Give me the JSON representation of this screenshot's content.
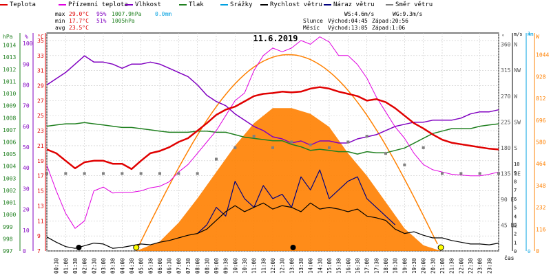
{
  "legend": [
    {
      "label": "Teplota",
      "color": "#e00000"
    },
    {
      "label": "Přízemní teplota",
      "color": "#e000e0"
    },
    {
      "label": "Vlhkost",
      "color": "#8000c0"
    },
    {
      "label": "Tlak",
      "color": "#208020"
    },
    {
      "label": "Srážky",
      "color": "#00a0e0"
    },
    {
      "label": "Rychlost větru",
      "color": "#000000"
    },
    {
      "label": "Náraz větru",
      "color": "#000080"
    },
    {
      "label": "Směr větru",
      "color": "#808080"
    }
  ],
  "stats": {
    "max_label": "max",
    "max_temp": "29.0°C",
    "max_hum": "95%",
    "max_press": "1007.9hPa",
    "rain": "0.0mm",
    "min_label": "min",
    "min_temp": "17.7°C",
    "min_hum": "51%",
    "min_press": "1005hPa",
    "avg_label": "avg",
    "avg_temp": "23.5°C",
    "ws": "WS:4.6m/s",
    "wg": "WG:9.3m/s",
    "sun_label": "Slunce",
    "sun_rise": "Východ:04:45",
    "sun_set": "Západ:20:56",
    "moon_label": "Měsíc",
    "moon_rise": "Východ:13:05",
    "moon_set": "Západ:1:06"
  },
  "colors": {
    "temp": "#e00000",
    "ground": "#e000e0",
    "hum": "#8000c0",
    "press": "#208020",
    "rain": "#00a0e0",
    "wind": "#000000",
    "gust": "#000080",
    "dir": "#808080",
    "sun": "#ff8000",
    "sunfill": "#ff8000",
    "yaxis_rain": "#00a0e0"
  },
  "chart_data": {
    "type": "line",
    "title": "11.6.2019",
    "xlabel": "čas",
    "x_hours": [
      0,
      1,
      2,
      3,
      4,
      5,
      6,
      7,
      8,
      9,
      10,
      11,
      12,
      13,
      14,
      15,
      16,
      17,
      18,
      19,
      20,
      21,
      22,
      23,
      24
    ],
    "x_ticks": [
      "00:30",
      "01:00",
      "01:30",
      "02:00",
      "02:30",
      "03:00",
      "03:30",
      "04:00",
      "04:30",
      "05:00",
      "05:30",
      "06:00",
      "06:30",
      "07:00",
      "07:30",
      "08:00",
      "08:30",
      "09:00",
      "09:30",
      "10:00",
      "10:30",
      "11:00",
      "11:30",
      "12:00",
      "12:30",
      "13:00",
      "13:30",
      "14:00",
      "14:30",
      "15:00",
      "15:30",
      "16:00",
      "16:30",
      "17:00",
      "17:30",
      "18:00",
      "18:30",
      "19:00",
      "19:30",
      "20:00",
      "20:30",
      "21:00",
      "21:30",
      "22:00",
      "22:30",
      "23:00",
      "23:30"
    ],
    "axes": {
      "pressure": {
        "label": "hPa",
        "range": [
          997,
          1015
        ],
        "ticks": [
          997,
          998,
          999,
          1000,
          1001,
          1002,
          1003,
          1004,
          1005,
          1006,
          1007,
          1008,
          1009,
          1010,
          1011,
          1012,
          1013,
          1014
        ]
      },
      "humidity": {
        "label": "%",
        "range": [
          0,
          105
        ],
        "ticks": [
          0,
          10,
          20,
          30,
          40,
          50,
          60,
          70,
          80,
          90,
          100
        ]
      },
      "temperature": {
        "label": "°C",
        "range": [
          7,
          36
        ],
        "ticks": [
          7,
          9,
          11,
          13,
          15,
          17,
          19,
          21,
          23,
          25,
          27,
          29,
          31,
          33,
          35
        ]
      },
      "direction": {
        "label": "°",
        "range": [
          0,
          380
        ],
        "ticks": [
          {
            "v": 45,
            "t": "45 NE"
          },
          {
            "v": 90,
            "t": "90 E"
          },
          {
            "v": 135,
            "t": "135 SE"
          },
          {
            "v": 180,
            "t": "180 S"
          },
          {
            "v": 225,
            "t": "225 SW"
          },
          {
            "v": 270,
            "t": "270 W"
          },
          {
            "v": 315,
            "t": "315 NW"
          },
          {
            "v": 360,
            "t": "360 N"
          }
        ]
      },
      "wind": {
        "label": "m/s",
        "range": [
          0,
          25
        ],
        "ticks": [
          0,
          1,
          2,
          3,
          4,
          5,
          6,
          7,
          8,
          9,
          10
        ]
      },
      "rain": {
        "label": "mm",
        "range": [
          0,
          1
        ],
        "ticks": [
          0,
          1
        ]
      },
      "solar": {
        "label": "W",
        "range": [
          0,
          1160
        ],
        "ticks": [
          0,
          116,
          232,
          348,
          464,
          580,
          696,
          812,
          928,
          1044
        ]
      }
    },
    "series": [
      {
        "name": "Teplota",
        "axis": "temperature",
        "x": [
          0,
          0.5,
          1,
          1.5,
          2,
          2.5,
          3,
          3.5,
          4,
          4.5,
          5,
          5.5,
          6,
          6.5,
          7,
          7.5,
          8,
          8.5,
          9,
          9.5,
          10,
          10.5,
          11,
          11.5,
          12,
          12.5,
          13,
          13.5,
          14,
          14.5,
          15,
          15.5,
          16,
          16.5,
          17,
          17.5,
          18,
          18.5,
          19,
          19.5,
          20,
          20.5,
          21,
          21.5,
          22,
          22.5,
          23,
          23.5,
          24
        ],
        "y": [
          20.5,
          20,
          19,
          18,
          18.8,
          19,
          19,
          18.6,
          18.6,
          17.9,
          19,
          20,
          20.3,
          20.8,
          21.5,
          22,
          23,
          24,
          25.1,
          25.8,
          26.2,
          26.9,
          27.6,
          27.9,
          28,
          28.2,
          28.1,
          28.2,
          28.6,
          28.8,
          28.6,
          28.2,
          27.9,
          27.6,
          27,
          27.2,
          26.8,
          26,
          25,
          24,
          23.3,
          22.5,
          21.8,
          21.4,
          21.2,
          21,
          20.8,
          20.6,
          20.5
        ]
      },
      {
        "name": "Přízemní teplota",
        "axis": "temperature",
        "x": [
          0,
          0.5,
          1,
          1.5,
          2,
          2.5,
          3,
          3.5,
          4,
          4.5,
          5,
          5.5,
          6,
          6.5,
          7,
          7.5,
          8,
          8.5,
          9,
          9.5,
          10,
          10.5,
          11,
          11.5,
          12,
          12.5,
          13,
          13.5,
          14,
          14.5,
          15,
          15.5,
          16,
          16.5,
          17,
          17.5,
          18,
          18.5,
          19,
          19.5,
          20,
          20.5,
          21,
          21.5,
          22,
          22.5,
          23,
          23.5,
          24
        ],
        "y": [
          18.4,
          15,
          12,
          10,
          11,
          15,
          15.5,
          14.7,
          14.8,
          14.8,
          15,
          15.4,
          15.6,
          16.2,
          17.5,
          18.5,
          20,
          21.5,
          23,
          25,
          27,
          28,
          31,
          33,
          34,
          33.5,
          34,
          35,
          34.5,
          35.5,
          34.8,
          33,
          33,
          31.8,
          30,
          27.5,
          25.5,
          23.5,
          22,
          20,
          18.5,
          17.8,
          17.5,
          17.2,
          17.1,
          17,
          17,
          17.2,
          17.5
        ]
      },
      {
        "name": "Vlhkost",
        "axis": "humidity",
        "x": [
          0,
          0.5,
          1,
          1.5,
          2,
          2.5,
          3,
          3.5,
          4,
          4.5,
          5,
          5.5,
          6,
          6.5,
          7,
          7.5,
          8,
          8.5,
          9,
          9.5,
          10,
          10.5,
          11,
          11.5,
          12,
          12.5,
          13,
          13.5,
          14,
          14.5,
          15,
          15.5,
          16,
          16.5,
          17,
          17.5,
          18,
          18.5,
          19,
          19.5,
          20,
          20.5,
          21,
          21.5,
          22,
          22.5,
          23,
          23.5,
          24
        ],
        "y": [
          80,
          83,
          86,
          90,
          94,
          91,
          91,
          90,
          88,
          90,
          90,
          91,
          90,
          88,
          86,
          84,
          80,
          75,
          72,
          70,
          66,
          63,
          60,
          58,
          55,
          54,
          52,
          53,
          51,
          53,
          53,
          52,
          52,
          54,
          55,
          56,
          58,
          60,
          61,
          62,
          62,
          63,
          63,
          63,
          64,
          66,
          67,
          67,
          68
        ]
      },
      {
        "name": "Tlak",
        "axis": "pressure",
        "x": [
          0,
          0.5,
          1,
          1.5,
          2,
          2.5,
          3,
          3.5,
          4,
          4.5,
          5,
          5.5,
          6,
          6.5,
          7,
          7.5,
          8,
          8.5,
          9,
          9.5,
          10,
          10.5,
          11,
          11.5,
          12,
          12.5,
          13,
          13.5,
          14,
          14.5,
          15,
          15.5,
          16,
          16.5,
          17,
          17.5,
          18,
          18.5,
          19,
          19.5,
          20,
          20.5,
          21,
          21.5,
          22,
          22.5,
          23,
          23.5,
          24
        ],
        "y": [
          1007.3,
          1007.4,
          1007.5,
          1007.5,
          1007.6,
          1007.5,
          1007.4,
          1007.3,
          1007.2,
          1007.2,
          1007.1,
          1007,
          1006.9,
          1006.8,
          1006.8,
          1006.8,
          1006.9,
          1006.9,
          1006.8,
          1006.8,
          1006.6,
          1006.4,
          1006.3,
          1006.2,
          1006.1,
          1006.1,
          1005.8,
          1005.6,
          1005.3,
          1005.4,
          1005.3,
          1005.2,
          1005.2,
          1005,
          1005.2,
          1005.1,
          1005.1,
          1005.3,
          1005.5,
          1005.9,
          1006.3,
          1006.7,
          1006.9,
          1007.1,
          1007.1,
          1007.1,
          1007.3,
          1007.4,
          1007.5
        ]
      },
      {
        "name": "Rychlost větru",
        "axis": "wind",
        "x": [
          0,
          0.5,
          1,
          1.5,
          2,
          2.5,
          3,
          3.5,
          4,
          4.5,
          5,
          5.5,
          6,
          6.5,
          7,
          7.5,
          8,
          8.5,
          9,
          9.5,
          10,
          10.5,
          11,
          11.5,
          12,
          12.5,
          13,
          13.5,
          14,
          14.5,
          15,
          15.5,
          16,
          16.5,
          17,
          17.5,
          18,
          18.5,
          19,
          19.5,
          20,
          20.5,
          21,
          21.5,
          22,
          22.5,
          23,
          23.5,
          24
        ],
        "y": [
          1.6,
          1,
          0.5,
          0.3,
          0.6,
          0.9,
          0.8,
          0.3,
          0.4,
          0.6,
          0.8,
          0.7,
          1,
          1.2,
          1.5,
          1.8,
          2,
          2.5,
          3.5,
          4.5,
          5.2,
          4.5,
          5,
          5.5,
          4.8,
          5.2,
          5,
          4.5,
          5.5,
          4.8,
          5,
          4.8,
          4.5,
          4.8,
          4,
          3.8,
          3.5,
          2.5,
          2,
          2.2,
          1.8,
          1.5,
          1.5,
          1.2,
          1,
          0.8,
          0.8,
          0.7,
          0.9
        ]
      },
      {
        "name": "Náraz větru",
        "axis": "wind",
        "x": [
          0,
          0.5,
          1,
          1.5,
          2,
          2.5,
          3,
          3.5,
          4,
          4.5,
          5,
          5.5,
          6,
          6.5,
          7,
          7.5,
          8,
          8.5,
          9,
          9.5,
          10,
          10.5,
          11,
          11.5,
          12,
          12.5,
          13,
          13.5,
          14,
          14.5,
          15,
          15.5,
          16,
          16.5,
          17,
          17.5,
          18,
          18.5,
          19,
          19.5,
          20,
          20.5,
          21,
          21.5,
          22,
          22.5,
          23,
          23.5,
          24
        ],
        "y": [
          null,
          null,
          null,
          null,
          null,
          null,
          null,
          null,
          null,
          null,
          null,
          null,
          null,
          null,
          null,
          null,
          2,
          3,
          5,
          4,
          8,
          6,
          5,
          7.5,
          6,
          6.5,
          5,
          8.5,
          7,
          9.3,
          6,
          7,
          8,
          8.5,
          6,
          5,
          4,
          3,
          null,
          3.5,
          null,
          null,
          null,
          null,
          null,
          null,
          null,
          null,
          null
        ]
      },
      {
        "name": "Směr větru",
        "axis": "direction",
        "x": [
          0,
          1,
          2,
          3,
          4,
          5,
          6,
          7,
          8,
          9,
          10,
          11,
          12,
          13,
          14,
          15,
          16,
          17,
          18,
          19,
          20,
          21,
          22,
          23,
          24
        ],
        "y": [
          135,
          135,
          135,
          135,
          135,
          135,
          135,
          135,
          135,
          160,
          180,
          200,
          180,
          190,
          185,
          180,
          190,
          200,
          170,
          150,
          180,
          135,
          135,
          135,
          135
        ]
      },
      {
        "name": "Sluneční záření",
        "axis": "solar",
        "x": [
          0,
          4.75,
          6,
          7,
          8,
          9,
          10,
          11,
          12,
          13,
          14,
          15,
          16,
          17,
          18,
          19,
          20,
          20.93,
          24
        ],
        "y": [
          0,
          0,
          50,
          150,
          280,
          420,
          560,
          680,
          760,
          760,
          730,
          660,
          520,
          400,
          260,
          120,
          30,
          0,
          0
        ]
      }
    ]
  }
}
